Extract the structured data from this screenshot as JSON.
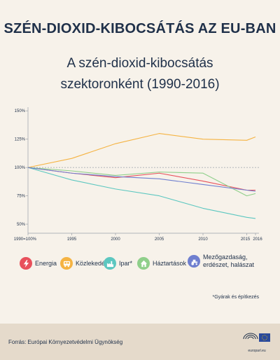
{
  "header": {
    "headline": "SZÉN-DIOXID-KIBOCSÁTÁS AZ EU-BAN",
    "title_line1": "A szén-dioxid-kibocsátás",
    "title_line2": "szektoronként (1990-2016)"
  },
  "chart_data": {
    "type": "line",
    "x": [
      1990,
      1995,
      2000,
      2005,
      2010,
      2015,
      2016
    ],
    "x_tick_labels": [
      "1990=100%",
      "1995",
      "2000",
      "2005",
      "2010",
      "2015",
      "2016"
    ],
    "y_tick_values": [
      50,
      75,
      100,
      125,
      150
    ],
    "y_tick_labels": [
      "50%",
      "75%",
      "100%",
      "125%",
      "150%"
    ],
    "ylim": [
      42,
      152
    ],
    "reference_line": 100,
    "series": [
      {
        "name": "Energia",
        "color": "#e8505b",
        "values": [
          100,
          95,
          91,
          95,
          88,
          80,
          80
        ]
      },
      {
        "name": "Közlekedés",
        "color": "#f5b342",
        "values": [
          100,
          108,
          121,
          130,
          125,
          124,
          127
        ]
      },
      {
        "name": "Ipar*",
        "color": "#5cc7c0",
        "values": [
          100,
          89,
          81,
          75,
          64,
          56,
          55
        ]
      },
      {
        "name": "Háztartások",
        "color": "#8fcf8a",
        "values": [
          100,
          97,
          93,
          96,
          95,
          75,
          77
        ]
      },
      {
        "name": "Mezőgazdaság, erdészet, halászat",
        "color": "#6f7fcf",
        "values": [
          100,
          95,
          92,
          90,
          85,
          80,
          79
        ]
      }
    ]
  },
  "legend": [
    {
      "label": "Energia",
      "color": "#e8505b",
      "icon": "lightning-icon"
    },
    {
      "label": "Közlekedés",
      "color": "#f5b342",
      "icon": "bus-icon"
    },
    {
      "label": "Ipar*",
      "color": "#5cc7c0",
      "icon": "factory-icon"
    },
    {
      "label": "Háztartások",
      "color": "#8fcf8a",
      "icon": "house-icon"
    },
    {
      "label": "Mezőgazdaság, erdészet, halászat",
      "color": "#6f7fcf",
      "icon": "tractor-icon"
    }
  ],
  "footnote": "*Gyárak és építkezés",
  "footer": {
    "source": "Forrás: Európai Környezetvédelmi Ügynökség",
    "logo_url": "europarl.eu"
  }
}
